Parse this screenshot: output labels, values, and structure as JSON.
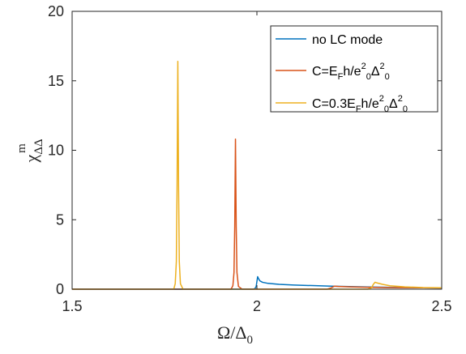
{
  "chart_data": {
    "type": "line",
    "xlim": [
      1.5,
      2.5
    ],
    "ylim": [
      0,
      20
    ],
    "xticks": [
      "1.5",
      "2",
      "2.5"
    ],
    "yticks": [
      "0",
      "5",
      "10",
      "15",
      "20"
    ],
    "xlabel": {
      "main": "Ω/Δ",
      "sub": "0"
    },
    "ylabel": {
      "main": "χ",
      "sup": "m",
      "sub": "ΔΔ"
    },
    "legend_position": "top-right",
    "grid": false,
    "series": [
      {
        "name": "no LC mode",
        "legend": [
          {
            "t": "no LC mode",
            "s": "n"
          }
        ],
        "color": "#0072BD",
        "points": [
          [
            1.5,
            0.0
          ],
          [
            1.99,
            0.0
          ],
          [
            1.995,
            0.05
          ],
          [
            1.998,
            0.2
          ],
          [
            2.0,
            0.55
          ],
          [
            2.002,
            0.9
          ],
          [
            2.004,
            0.78
          ],
          [
            2.008,
            0.6
          ],
          [
            2.015,
            0.5
          ],
          [
            2.03,
            0.42
          ],
          [
            2.06,
            0.35
          ],
          [
            2.1,
            0.3
          ],
          [
            2.15,
            0.26
          ],
          [
            2.2,
            0.22
          ],
          [
            2.25,
            0.19
          ],
          [
            2.3,
            0.16
          ],
          [
            2.35,
            0.14
          ],
          [
            2.4,
            0.12
          ],
          [
            2.45,
            0.1
          ],
          [
            2.5,
            0.09
          ]
        ]
      },
      {
        "name": "C=E_Fh/e_0^2Δ_0^2",
        "legend": [
          {
            "t": "C=E",
            "s": "n"
          },
          {
            "t": "F",
            "s": "sub"
          },
          {
            "t": "h/e",
            "s": "n"
          },
          {
            "t": "2",
            "s": "sup"
          },
          {
            "t": "0",
            "s": "sub"
          },
          {
            "t": "Δ",
            "s": "n"
          },
          {
            "t": "2",
            "s": "sup"
          },
          {
            "t": "0",
            "s": "sub"
          }
        ],
        "color": "#D95319",
        "points": [
          [
            1.5,
            0.0
          ],
          [
            1.93,
            0.0
          ],
          [
            1.935,
            0.25
          ],
          [
            1.938,
            1.2
          ],
          [
            1.94,
            4.5
          ],
          [
            1.942,
            10.8
          ],
          [
            1.944,
            4.5
          ],
          [
            1.946,
            1.2
          ],
          [
            1.95,
            0.2
          ],
          [
            1.96,
            0.0
          ],
          [
            2.19,
            0.0
          ],
          [
            2.2,
            0.08
          ],
          [
            2.21,
            0.22
          ],
          [
            2.22,
            0.2
          ],
          [
            2.25,
            0.17
          ],
          [
            2.3,
            0.14
          ],
          [
            2.35,
            0.12
          ],
          [
            2.4,
            0.11
          ],
          [
            2.45,
            0.1
          ],
          [
            2.5,
            0.09
          ]
        ]
      },
      {
        "name": "C=0.3E_Fh/e_0^2Δ_0^2",
        "legend": [
          {
            "t": "C=0.3E",
            "s": "n"
          },
          {
            "t": "F",
            "s": "sub"
          },
          {
            "t": "h/e",
            "s": "n"
          },
          {
            "t": "2",
            "s": "sup"
          },
          {
            "t": "0",
            "s": "sub"
          },
          {
            "t": "Δ",
            "s": "n"
          },
          {
            "t": "2",
            "s": "sup"
          },
          {
            "t": "0",
            "s": "sub"
          }
        ],
        "color": "#EDB120",
        "points": [
          [
            1.5,
            0.0
          ],
          [
            1.775,
            0.0
          ],
          [
            1.779,
            0.4
          ],
          [
            1.782,
            2.0
          ],
          [
            1.784,
            7.5
          ],
          [
            1.786,
            16.4
          ],
          [
            1.788,
            7.5
          ],
          [
            1.79,
            2.0
          ],
          [
            1.793,
            0.4
          ],
          [
            1.8,
            0.0
          ],
          [
            2.3,
            0.0
          ],
          [
            2.31,
            0.1
          ],
          [
            2.315,
            0.35
          ],
          [
            2.32,
            0.5
          ],
          [
            2.325,
            0.45
          ],
          [
            2.34,
            0.35
          ],
          [
            2.36,
            0.25
          ],
          [
            2.4,
            0.17
          ],
          [
            2.45,
            0.12
          ],
          [
            2.5,
            0.1
          ]
        ]
      }
    ]
  }
}
